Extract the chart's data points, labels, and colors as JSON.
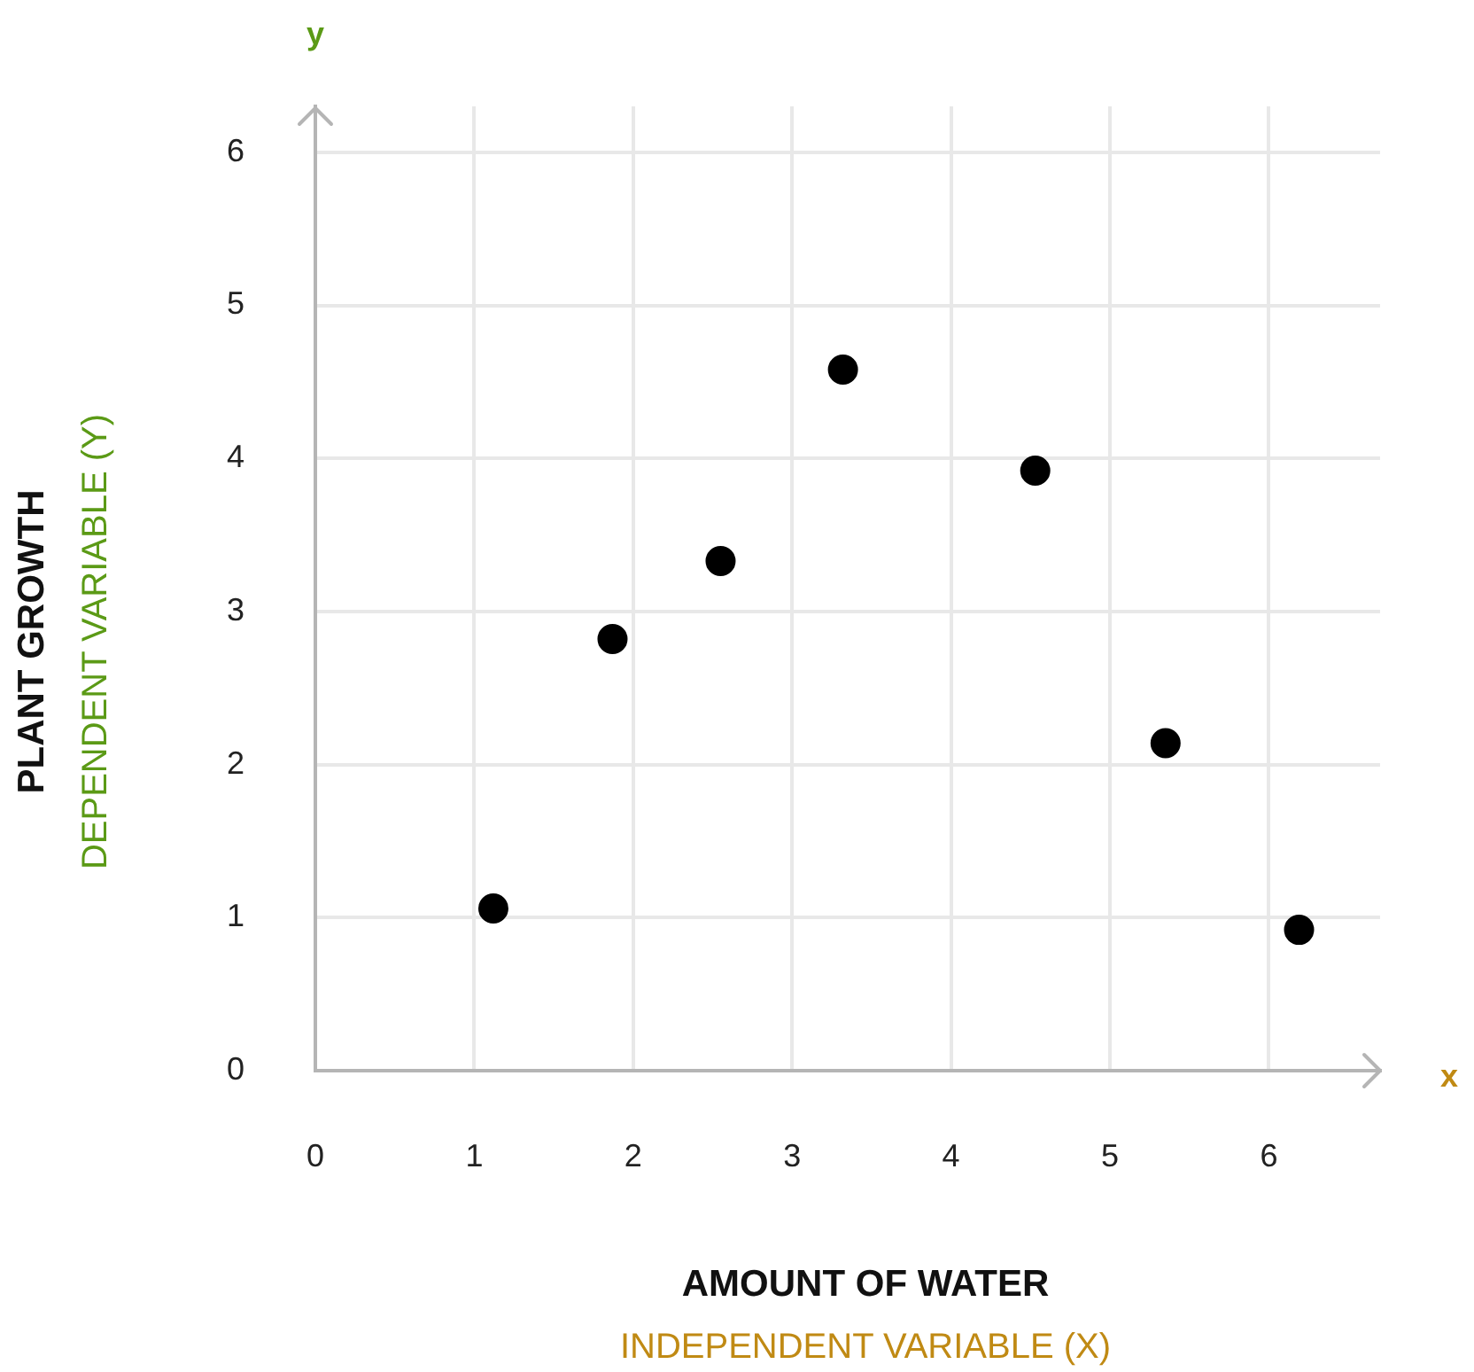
{
  "chart_data": {
    "type": "scatter",
    "xlabel": "AMOUNT OF WATER",
    "ylabel": "PLANT GROWTH",
    "annotations": [
      "INDEPENDENT VARIABLE (X)",
      "DEPENDENT VARIABLE (Y)",
      "x",
      "y"
    ],
    "x": [
      1.12,
      1.87,
      2.55,
      3.32,
      4.53,
      5.35,
      6.19
    ],
    "values": [
      1.06,
      2.82,
      3.33,
      4.58,
      3.92,
      2.14,
      0.92
    ],
    "color": "#000000",
    "marker": "circle",
    "xlim": [
      0,
      6.7
    ],
    "ylim": [
      0,
      6.3
    ],
    "xticks": [
      0,
      1,
      2,
      3,
      4,
      5,
      6
    ],
    "yticks": [
      0,
      1,
      2,
      3,
      4,
      5,
      6
    ],
    "grid": true
  }
}
